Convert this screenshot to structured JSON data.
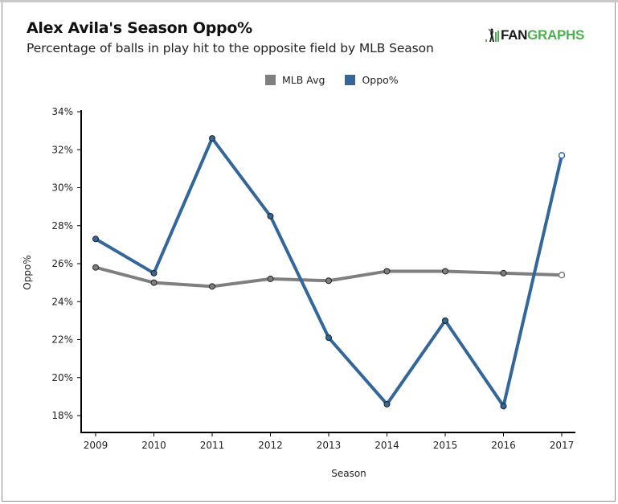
{
  "header": {
    "title": "Alex Avila's Season Oppo%",
    "subtitle": "Percentage of balls in play hit to the opposite field by MLB Season",
    "logo_fan": "FAN",
    "logo_graphs": "GRAPHS",
    "logo_icon": "fangraphs-batter-icon"
  },
  "colors": {
    "mlb_avg": "#7f7f7f",
    "oppo": "#336699",
    "logo_green": "#4caf50",
    "axis": "#000000"
  },
  "chart_data": {
    "type": "line",
    "title": "Alex Avila's Season Oppo%",
    "subtitle": "Percentage of balls in play hit to the opposite field by MLB Season",
    "xlabel": "Season",
    "ylabel": "Oppo%",
    "x": [
      "2009",
      "2010",
      "2011",
      "2012",
      "2013",
      "2014",
      "2015",
      "2016",
      "2017"
    ],
    "yticks": [
      "18%",
      "20%",
      "22%",
      "24%",
      "26%",
      "28%",
      "30%",
      "32%",
      "34%"
    ],
    "ytick_values": [
      18,
      20,
      22,
      24,
      26,
      28,
      30,
      32,
      34
    ],
    "ylim": [
      17.2,
      34.2
    ],
    "grid": false,
    "legend_position": "top-center",
    "series": [
      {
        "name": "MLB Avg",
        "color": "#7f7f7f",
        "values": [
          25.8,
          25.0,
          24.8,
          25.2,
          25.1,
          25.6,
          25.6,
          25.5,
          25.4
        ]
      },
      {
        "name": "Oppo%",
        "color": "#336699",
        "values": [
          27.3,
          25.5,
          32.6,
          28.5,
          22.1,
          18.6,
          23.0,
          18.5,
          31.7
        ]
      }
    ],
    "last_point_hollow": true
  }
}
